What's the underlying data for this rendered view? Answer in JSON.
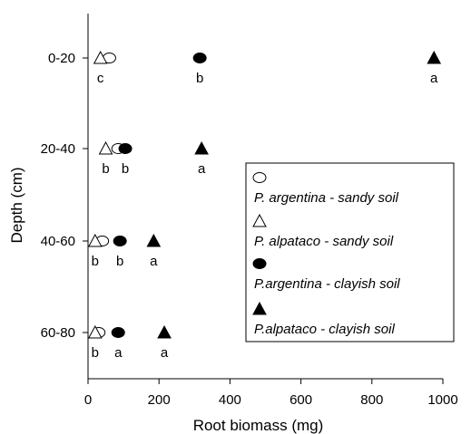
{
  "chart_data": {
    "type": "scatter",
    "xlabel": "Root biomass (mg)",
    "ylabel": "Depth (cm)",
    "xlim": [
      0,
      1000
    ],
    "xticks": [
      "0",
      "200",
      "400",
      "600",
      "800",
      "1000"
    ],
    "categories": [
      "0-20",
      "20-40",
      "40-60",
      "60-80"
    ],
    "legend_position": "right",
    "series": [
      {
        "name": "P. argentina - sandy soil",
        "marker": "circle-open",
        "values": [
          60,
          85,
          40,
          30
        ],
        "labels": [
          "",
          "",
          "",
          ""
        ]
      },
      {
        "name": "P. alpataco - sandy soil",
        "marker": "triangle-open",
        "values": [
          35,
          50,
          20,
          20
        ],
        "labels": [
          "c",
          "b",
          "b",
          "b"
        ]
      },
      {
        "name": "P.argentina - clayish soil",
        "marker": "circle-filled",
        "values": [
          315,
          105,
          90,
          85
        ],
        "labels": [
          "b",
          "b",
          "b",
          "a"
        ]
      },
      {
        "name": "P.alpataco - clayish soil",
        "marker": "triangle-filled",
        "values": [
          975,
          320,
          185,
          215
        ],
        "labels": [
          "a",
          "a",
          "a",
          "a"
        ]
      }
    ]
  }
}
